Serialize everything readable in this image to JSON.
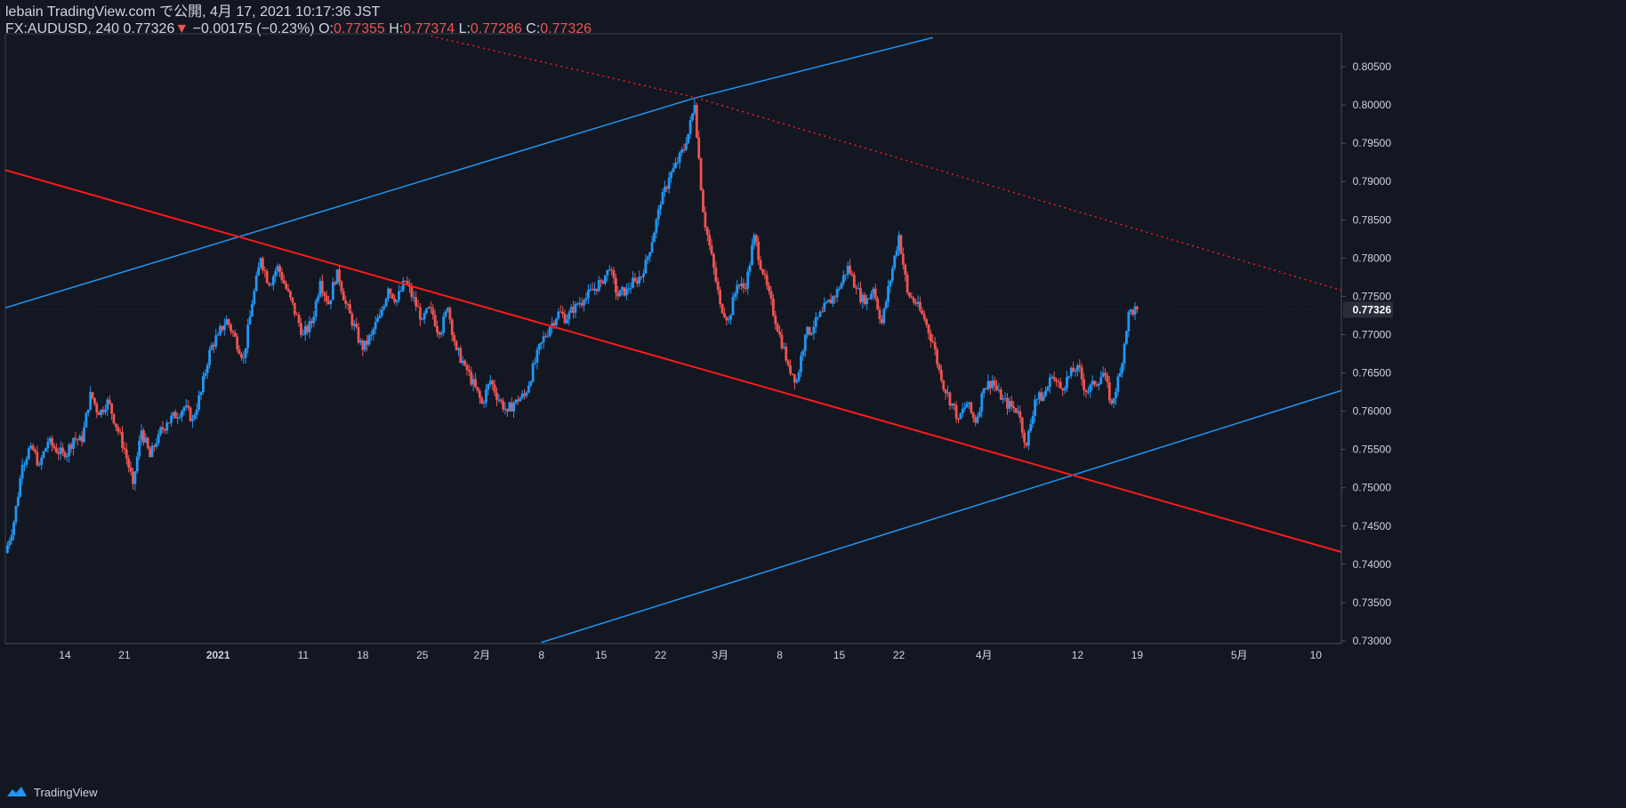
{
  "header": {
    "publish_line": "lebain TradingView.com で公開, 4月 17, 2021 10:17:36 JST",
    "symbol": "FX:AUDUSD, 240",
    "last": "0.77326",
    "change_arrow": "▼",
    "change": "−0.00175 (−0.23%)",
    "o_label": "O:",
    "o_value": "0.77355",
    "h_label": "H:",
    "h_value": "0.77374",
    "l_label": "L:",
    "l_value": "0.77286",
    "c_label": "C:",
    "c_value": "0.77326"
  },
  "footer": {
    "brand": "TradingView"
  },
  "colors": {
    "background": "#131722",
    "up_candle": "#2196f3",
    "down_candle": "#ef5350",
    "trend_blue": "#2196f3",
    "trend_red": "#ff1a1a",
    "axis_text": "#d1d4dc",
    "price_badge_bg": "#2a2e39"
  },
  "chart_data": {
    "type": "candlestick",
    "symbol": "FX:AUDUSD",
    "interval": "240",
    "price_axis": {
      "ylim": [
        0.73,
        0.809
      ],
      "ticks": [
        "0.80500",
        "0.80000",
        "0.79500",
        "0.79000",
        "0.78500",
        "0.78000",
        "0.77500",
        "0.77000",
        "0.76500",
        "0.76000",
        "0.75500",
        "0.75000",
        "0.74500",
        "0.74000",
        "0.73500",
        "0.73000"
      ],
      "current_price_label": "0.77326",
      "current_price": 0.77326
    },
    "time_axis": {
      "ticks": [
        {
          "label": "14",
          "date": "2020-12-14"
        },
        {
          "label": "21",
          "date": "2020-12-21"
        },
        {
          "label": "2021",
          "date": "2021-01-01"
        },
        {
          "label": "11",
          "date": "2021-01-11"
        },
        {
          "label": "18",
          "date": "2021-01-18"
        },
        {
          "label": "25",
          "date": "2021-01-25"
        },
        {
          "label": "2月",
          "date": "2021-02-01"
        },
        {
          "label": "8",
          "date": "2021-02-08"
        },
        {
          "label": "15",
          "date": "2021-02-15"
        },
        {
          "label": "22",
          "date": "2021-02-22"
        },
        {
          "label": "3月",
          "date": "2021-03-01"
        },
        {
          "label": "8",
          "date": "2021-03-08"
        },
        {
          "label": "15",
          "date": "2021-03-15"
        },
        {
          "label": "22",
          "date": "2021-03-22"
        },
        {
          "label": "4月",
          "date": "2021-04-01"
        },
        {
          "label": "12",
          "date": "2021-04-12"
        },
        {
          "label": "19",
          "date": "2021-04-19"
        },
        {
          "label": "5月",
          "date": "2021-05-01"
        },
        {
          "label": "10",
          "date": "2021-05-10"
        }
      ]
    },
    "price_path": [
      [
        "2020-12-07",
        0.7415
      ],
      [
        "2020-12-08",
        0.7455
      ],
      [
        "2020-12-09",
        0.753
      ],
      [
        "2020-12-10",
        0.7555
      ],
      [
        "2020-12-11",
        0.753
      ],
      [
        "2020-12-12",
        0.756
      ],
      [
        "2020-12-14",
        0.754
      ],
      [
        "2020-12-15",
        0.7565
      ],
      [
        "2020-12-16",
        0.756
      ],
      [
        "2020-12-17",
        0.7625
      ],
      [
        "2020-12-18",
        0.7595
      ],
      [
        "2020-12-19",
        0.7615
      ],
      [
        "2020-12-21",
        0.755
      ],
      [
        "2020-12-22",
        0.7505
      ],
      [
        "2020-12-23",
        0.7575
      ],
      [
        "2020-12-24",
        0.754
      ],
      [
        "2020-12-25",
        0.757
      ],
      [
        "2020-12-26",
        0.7585
      ],
      [
        "2020-12-28",
        0.7605
      ],
      [
        "2020-12-29",
        0.759
      ],
      [
        "2020-12-30",
        0.7625
      ],
      [
        "2020-12-31",
        0.768
      ],
      [
        "2021-01-01",
        0.77
      ],
      [
        "2021-01-02",
        0.772
      ],
      [
        "2021-01-04",
        0.767
      ],
      [
        "2021-01-05",
        0.774
      ],
      [
        "2021-01-06",
        0.78
      ],
      [
        "2021-01-07",
        0.7765
      ],
      [
        "2021-01-08",
        0.779
      ],
      [
        "2021-01-09",
        0.776
      ],
      [
        "2021-01-11",
        0.77
      ],
      [
        "2021-01-12",
        0.7715
      ],
      [
        "2021-01-13",
        0.777
      ],
      [
        "2021-01-14",
        0.774
      ],
      [
        "2021-01-15",
        0.7785
      ],
      [
        "2021-01-16",
        0.774
      ],
      [
        "2021-01-18",
        0.768
      ],
      [
        "2021-01-19",
        0.77
      ],
      [
        "2021-01-20",
        0.7725
      ],
      [
        "2021-01-21",
        0.776
      ],
      [
        "2021-01-22",
        0.7745
      ],
      [
        "2021-01-23",
        0.777
      ],
      [
        "2021-01-25",
        0.772
      ],
      [
        "2021-01-26",
        0.7735
      ],
      [
        "2021-01-27",
        0.77
      ],
      [
        "2021-01-28",
        0.7735
      ],
      [
        "2021-01-29",
        0.768
      ],
      [
        "2021-01-30",
        0.766
      ],
      [
        "2021-02-01",
        0.761
      ],
      [
        "2021-02-02",
        0.764
      ],
      [
        "2021-02-03",
        0.7615
      ],
      [
        "2021-02-04",
        0.76
      ],
      [
        "2021-02-05",
        0.7615
      ],
      [
        "2021-02-06",
        0.762
      ],
      [
        "2021-02-08",
        0.769
      ],
      [
        "2021-02-09",
        0.771
      ],
      [
        "2021-02-10",
        0.773
      ],
      [
        "2021-02-11",
        0.772
      ],
      [
        "2021-02-12",
        0.774
      ],
      [
        "2021-02-13",
        0.7745
      ],
      [
        "2021-02-15",
        0.777
      ],
      [
        "2021-02-16",
        0.7785
      ],
      [
        "2021-02-17",
        0.775
      ],
      [
        "2021-02-18",
        0.776
      ],
      [
        "2021-02-19",
        0.777
      ],
      [
        "2021-02-20",
        0.778
      ],
      [
        "2021-02-22",
        0.787
      ],
      [
        "2021-02-23",
        0.7905
      ],
      [
        "2021-02-24",
        0.7925
      ],
      [
        "2021-02-25",
        0.795
      ],
      [
        "2021-02-26",
        0.8
      ],
      [
        "2021-02-27",
        0.786
      ],
      [
        "2021-03-01",
        0.774
      ],
      [
        "2021-03-02",
        0.772
      ],
      [
        "2021-03-03",
        0.7765
      ],
      [
        "2021-03-04",
        0.776
      ],
      [
        "2021-03-05",
        0.783
      ],
      [
        "2021-03-06",
        0.778
      ],
      [
        "2021-03-08",
        0.77
      ],
      [
        "2021-03-09",
        0.766
      ],
      [
        "2021-03-10",
        0.764
      ],
      [
        "2021-03-11",
        0.77
      ],
      [
        "2021-03-12",
        0.771
      ],
      [
        "2021-03-13",
        0.773
      ],
      [
        "2021-03-15",
        0.776
      ],
      [
        "2021-03-16",
        0.779
      ],
      [
        "2021-03-17",
        0.776
      ],
      [
        "2021-03-18",
        0.774
      ],
      [
        "2021-03-19",
        0.776
      ],
      [
        "2021-03-20",
        0.7715
      ],
      [
        "2021-03-22",
        0.783
      ],
      [
        "2021-03-23",
        0.7755
      ],
      [
        "2021-03-24",
        0.774
      ],
      [
        "2021-03-25",
        0.772
      ],
      [
        "2021-03-26",
        0.769
      ],
      [
        "2021-03-27",
        0.764
      ],
      [
        "2021-03-29",
        0.759
      ],
      [
        "2021-03-30",
        0.761
      ],
      [
        "2021-03-31",
        0.7585
      ],
      [
        "2021-04-01",
        0.763
      ],
      [
        "2021-04-02",
        0.764
      ],
      [
        "2021-04-03",
        0.7615
      ],
      [
        "2021-04-05",
        0.76
      ],
      [
        "2021-04-06",
        0.7555
      ],
      [
        "2021-04-07",
        0.7615
      ],
      [
        "2021-04-08",
        0.762
      ],
      [
        "2021-04-09",
        0.7645
      ],
      [
        "2021-04-10",
        0.763
      ],
      [
        "2021-04-12",
        0.766
      ],
      [
        "2021-04-13",
        0.7625
      ],
      [
        "2021-04-14",
        0.7635
      ],
      [
        "2021-04-15",
        0.765
      ],
      [
        "2021-04-16",
        0.761
      ],
      [
        "2021-04-17",
        0.765
      ],
      [
        "2021-04-18",
        0.773
      ],
      [
        "2021-04-19",
        0.77326
      ]
    ],
    "trendlines": [
      {
        "color": "blue",
        "style": "solid",
        "points": [
          [
            "2020-12-07",
            0.7735
          ],
          [
            "2021-02-26",
            0.8009
          ],
          [
            "2021-03-26",
            0.8088
          ]
        ]
      },
      {
        "color": "blue",
        "style": "solid",
        "points": [
          [
            "2021-02-08",
            0.7298
          ],
          [
            "2021-05-13",
            0.7627
          ]
        ]
      },
      {
        "color": "red",
        "style": "solid",
        "points": [
          [
            "2020-12-07",
            0.7915
          ],
          [
            "2021-05-13",
            0.7416
          ]
        ]
      },
      {
        "color": "red",
        "style": "dotted",
        "points": [
          [
            "2021-01-26",
            0.809
          ],
          [
            "2021-02-26",
            0.801
          ],
          [
            "2021-05-13",
            0.7758
          ]
        ]
      }
    ]
  }
}
